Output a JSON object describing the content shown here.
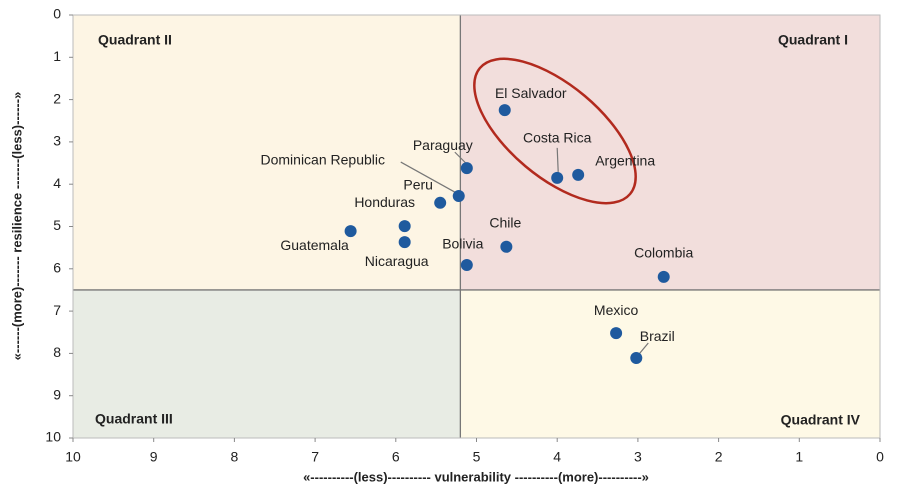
{
  "chart_data": {
    "type": "scatter",
    "quadrant_labels": [
      "Quadrant I",
      "Quadrant II",
      "Quadrant III",
      "Quadrant IV"
    ],
    "x_label": "«----------(less)---------- vulnerability ----------(more)----------»",
    "y_label": "«------(more)------- resilience -------(less)------»",
    "labels": [
      "El Salvador",
      "Costa Rica",
      "Argentina",
      "Paraguay",
      "Dominican Republic",
      "Peru",
      "Honduras",
      "Guatemala",
      "Nicaragua",
      "Bolivia",
      "Chile",
      "Colombia",
      "Mexico",
      "Brazil"
    ],
    "x": [
      4.65,
      4.0,
      3.74,
      5.12,
      5.22,
      5.45,
      5.89,
      6.56,
      5.89,
      5.12,
      4.63,
      2.68,
      3.27,
      3.02
    ],
    "y": [
      2.25,
      3.85,
      3.78,
      3.62,
      4.28,
      4.44,
      4.99,
      5.11,
      5.37,
      5.91,
      5.48,
      6.19,
      7.52,
      8.11
    ],
    "color": "#1f5a9e",
    "quadrant_lines": {
      "x": 5.2,
      "y": 6.5
    },
    "quadrant_colors": [
      "#f2dedc",
      "#fdf5e4",
      "#e8ece4",
      "#fef9e6"
    ],
    "xlim": [
      10,
      0
    ],
    "xticks": [
      10,
      9,
      8,
      7,
      6,
      5,
      4,
      3,
      2,
      1,
      0
    ],
    "ylim": [
      10,
      0
    ],
    "yticks": [
      0,
      1,
      2,
      3,
      4,
      5,
      6,
      7,
      8,
      9,
      10
    ]
  }
}
